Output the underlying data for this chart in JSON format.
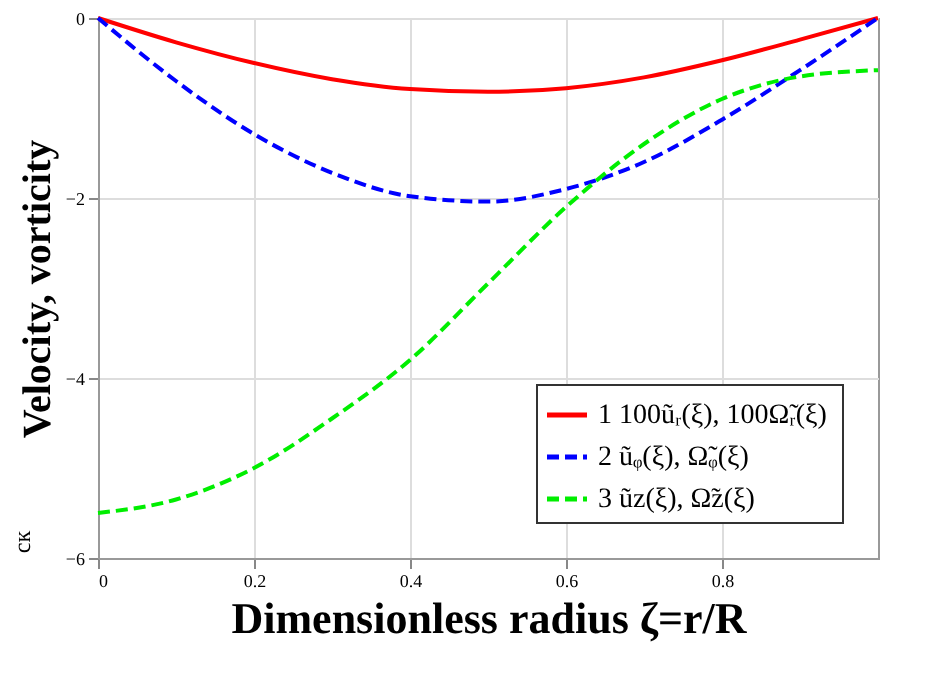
{
  "chart_data": {
    "type": "line",
    "xlabel": "Dimensionless radius ζ=r/R",
    "ylabel": "Velocity, vorticity",
    "annotations": [
      "ск"
    ],
    "x": [
      0,
      0.1,
      0.2,
      0.3,
      0.4,
      0.5,
      0.6,
      0.7,
      0.8,
      0.9,
      1.0
    ],
    "series": [
      {
        "name": "1  100ũᵣ(ξ), 100Ω̃ᵣ(ξ)",
        "color": "#ff0000",
        "line_style": "solid",
        "values": [
          0,
          -0.27,
          -0.5,
          -0.68,
          -0.79,
          -0.82,
          -0.78,
          -0.66,
          -0.47,
          -0.24,
          0
        ]
      },
      {
        "name": "2  ũᵩ(ξ), Ω̃ᵩ(ξ)",
        "color": "#0000ff",
        "line_style": "dashed",
        "values": [
          0,
          -0.7,
          -1.29,
          -1.72,
          -1.98,
          -2.04,
          -1.9,
          -1.6,
          -1.13,
          -0.58,
          0
        ]
      },
      {
        "name": "3  ũz(ξ), Ω̃z(ξ)",
        "color": "#00ee00",
        "line_style": "dashed",
        "values": [
          -5.5,
          -5.35,
          -5.0,
          -4.45,
          -3.8,
          -2.95,
          -2.1,
          -1.4,
          -0.9,
          -0.65,
          -0.58
        ]
      }
    ],
    "xlim": [
      0,
      1
    ],
    "xticks": [
      0,
      0.2,
      0.4,
      0.6,
      0.8
    ],
    "ylim": [
      -6,
      0
    ],
    "yticks": [
      0,
      -2,
      -4,
      -6
    ],
    "grid": true,
    "legend": "bottom right"
  }
}
